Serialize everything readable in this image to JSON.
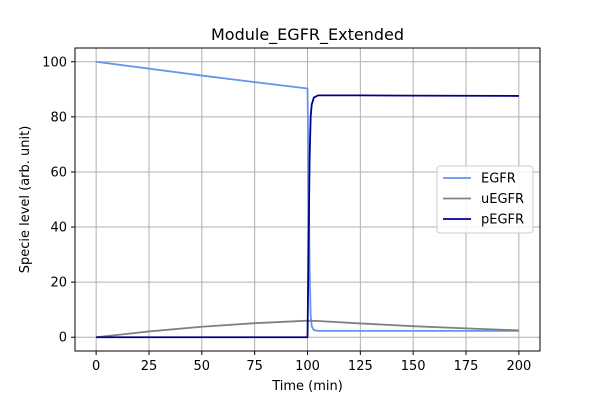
{
  "chart_data": {
    "type": "line",
    "title": "Module_EGFR_Extended",
    "xlabel": "Time (min)",
    "ylabel": "Specie level (arb. unit)",
    "xlim": [
      -10,
      210
    ],
    "ylim": [
      -5,
      105
    ],
    "xticks": [
      0,
      25,
      50,
      75,
      100,
      125,
      150,
      175,
      200
    ],
    "yticks": [
      0,
      20,
      40,
      60,
      80,
      100
    ],
    "grid": true,
    "legend_position": "center-right",
    "series": [
      {
        "name": "EGFR",
        "color": "#6495ed",
        "x": [
          0,
          25,
          50,
          75,
          100,
          100.5,
          101,
          101.5,
          102,
          103,
          105,
          110,
          150,
          200
        ],
        "y": [
          100,
          97.5,
          95,
          92.6,
          90.3,
          60,
          25,
          8,
          4,
          2.6,
          2.3,
          2.3,
          2.3,
          2.3
        ]
      },
      {
        "name": "uEGFR",
        "color": "#808080",
        "x": [
          0,
          25,
          50,
          75,
          100,
          105,
          125,
          150,
          175,
          200
        ],
        "y": [
          0,
          2.1,
          3.8,
          5.1,
          6.0,
          5.9,
          5.0,
          4.0,
          3.2,
          2.5
        ]
      },
      {
        "name": "pEGFR",
        "color": "#00008b",
        "x": [
          0,
          25,
          50,
          75,
          100,
          100.5,
          101,
          101.5,
          102,
          103,
          105,
          125,
          150,
          200
        ],
        "y": [
          0,
          0,
          0,
          0,
          0,
          32,
          65,
          80,
          84.5,
          87,
          87.8,
          87.8,
          87.7,
          87.6
        ]
      }
    ]
  }
}
